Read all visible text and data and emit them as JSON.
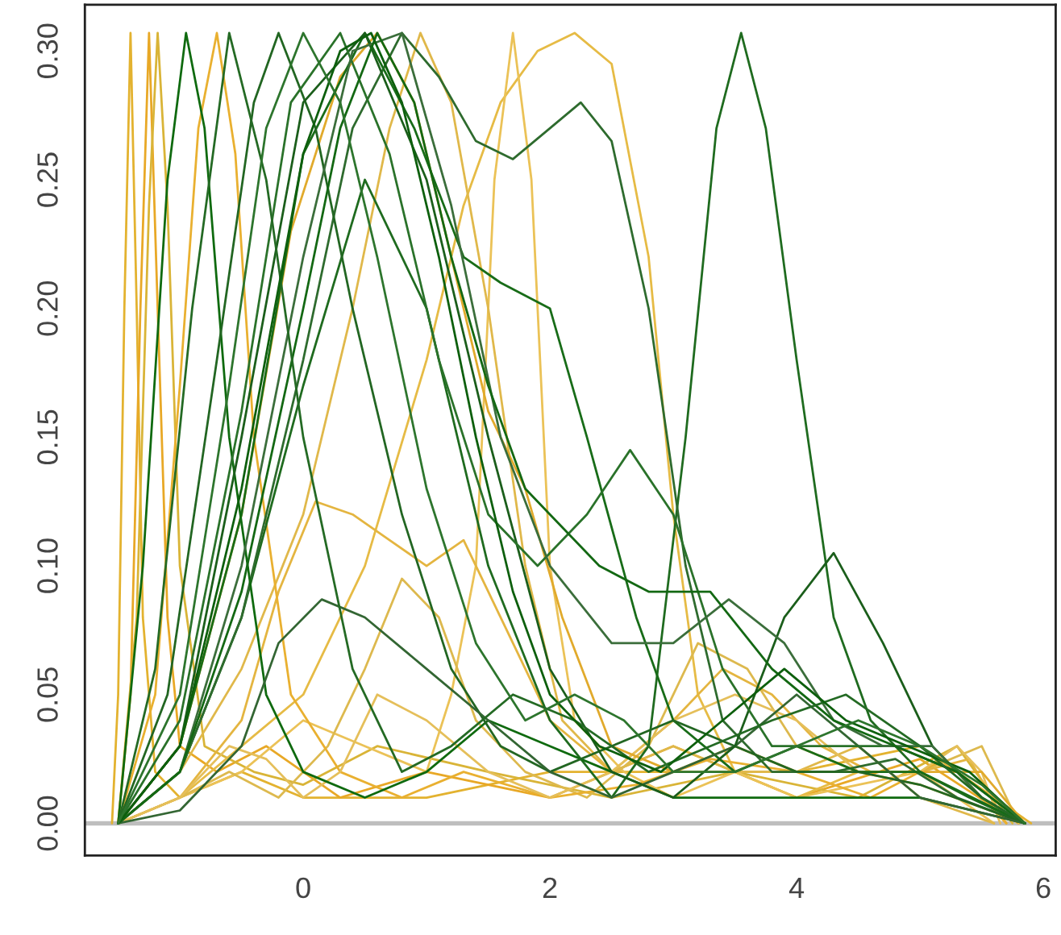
{
  "chart_data": {
    "type": "line",
    "xlim": [
      -1.77,
      6.1
    ],
    "ylim": [
      -0.0125,
      0.318
    ],
    "xticks": [
      0,
      2,
      4,
      6
    ],
    "yticks": [
      {
        "value": 0,
        "label": "0.00"
      },
      {
        "value": 0.05,
        "label": "0.05"
      },
      {
        "value": 0.1,
        "label": "0.10"
      },
      {
        "value": 0.15,
        "label": "0.15"
      },
      {
        "value": 0.2,
        "label": "0.20"
      },
      {
        "value": 0.25,
        "label": "0.25"
      },
      {
        "value": 0.3,
        "label": "0.30"
      }
    ],
    "ref_lines": [
      {
        "axis": "y",
        "value": 0,
        "color": "#bebebe"
      }
    ],
    "series": [
      {
        "color": "#e3b22f",
        "x": [
          -1.55,
          -1.5,
          -1.45,
          -1.4,
          -1.35,
          -1.3,
          -1.2,
          -1.0,
          -0.5,
          0,
          1,
          2,
          3,
          4,
          5,
          5.9
        ],
        "values": [
          0,
          0.05,
          0.2,
          0.307,
          0.2,
          0.08,
          0.02,
          0.01,
          0.02,
          0.01,
          0.01,
          0.02,
          0.02,
          0.02,
          0.03,
          0
        ]
      },
      {
        "color": "#e8a826",
        "x": [
          -1.5,
          -1.4,
          -1.32,
          -1.25,
          -1.18,
          -1.1,
          -1.0,
          -0.7,
          -0.3,
          0.3,
          1,
          2,
          3,
          4,
          5,
          5.8
        ],
        "values": [
          0,
          0.05,
          0.2,
          0.307,
          0.2,
          0.08,
          0.03,
          0.02,
          0.03,
          0.01,
          0.02,
          0.01,
          0.03,
          0.01,
          0.025,
          0
        ]
      },
      {
        "color": "#d9b437",
        "x": [
          -1.5,
          -1.35,
          -1.25,
          -1.18,
          -1.1,
          -1.0,
          -0.8,
          -0.4,
          0,
          0.6,
          1.5,
          2.5,
          3.5,
          4.5,
          5.3,
          5.75
        ],
        "values": [
          0,
          0.08,
          0.24,
          0.307,
          0.24,
          0.1,
          0.03,
          0.02,
          0.015,
          0.03,
          0.02,
          0.01,
          0.02,
          0.01,
          0.03,
          0
        ]
      },
      {
        "color": "#e6bb45",
        "x": [
          -1.5,
          -1.0,
          -0.5,
          0,
          0.5,
          1,
          1.3,
          1.6,
          1.9,
          2.2,
          2.5,
          2.8,
          3.0,
          3.2,
          3.5,
          4,
          4.5,
          5,
          5.85
        ],
        "values": [
          0,
          0.01,
          0.03,
          0.05,
          0.1,
          0.18,
          0.24,
          0.28,
          0.3,
          0.307,
          0.295,
          0.22,
          0.12,
          0.05,
          0.02,
          0.01,
          0.02,
          0.015,
          0
        ]
      },
      {
        "color": "#ebc257",
        "x": [
          -1.5,
          -1.0,
          -0.5,
          0,
          0.5,
          1.0,
          1.2,
          1.4,
          1.55,
          1.7,
          1.85,
          2.0,
          2.2,
          2.6,
          3.0,
          3.5,
          4,
          4.5,
          5,
          5.6
        ],
        "values": [
          0,
          0.01,
          0.02,
          0.04,
          0.03,
          0.02,
          0.05,
          0.1,
          0.25,
          0.307,
          0.25,
          0.1,
          0.04,
          0.02,
          0.01,
          0.02,
          0.01,
          0.015,
          0.02,
          0
        ]
      },
      {
        "color": "#e0b84a",
        "x": [
          -1.5,
          -1.0,
          -0.5,
          0,
          0.4,
          0.7,
          0.95,
          1.2,
          1.5,
          1.8,
          2.1,
          2.5,
          3,
          3.5,
          4,
          4.5,
          5,
          5.6
        ],
        "values": [
          0,
          0.02,
          0.06,
          0.12,
          0.2,
          0.27,
          0.307,
          0.28,
          0.2,
          0.1,
          0.04,
          0.02,
          0.03,
          0.02,
          0.02,
          0.03,
          0.01,
          0
        ]
      },
      {
        "color": "#e4b540",
        "x": [
          -1.5,
          -1.0,
          -0.5,
          -0.2,
          0.1,
          0.4,
          0.7,
          1.0,
          1.3,
          1.6,
          2.0,
          2.5,
          3.0,
          3.4,
          3.8,
          4.2,
          4.6,
          5.0,
          5.4,
          5.7
        ],
        "values": [
          0,
          0.01,
          0.04,
          0.09,
          0.125,
          0.12,
          0.11,
          0.1,
          0.11,
          0.08,
          0.04,
          0.02,
          0.04,
          0.06,
          0.05,
          0.03,
          0.02,
          0.02,
          0.025,
          0
        ]
      },
      {
        "color": "#ddb94e",
        "x": [
          -1.5,
          -1.0,
          -0.6,
          -0.2,
          0.2,
          0.5,
          0.8,
          1.1,
          1.4,
          1.8,
          2.3,
          2.8,
          3.2,
          3.6,
          4.0,
          4.5,
          5.0,
          5.5,
          5.8
        ],
        "values": [
          0,
          0.01,
          0.02,
          0.01,
          0.03,
          0.06,
          0.095,
          0.08,
          0.04,
          0.02,
          0.01,
          0.03,
          0.07,
          0.06,
          0.03,
          0.02,
          0.02,
          0.03,
          0
        ]
      },
      {
        "color": "#e9b030",
        "x": [
          -1.5,
          -1.2,
          -1.0,
          -0.85,
          -0.7,
          -0.55,
          -0.4,
          -0.1,
          0.3,
          0.8,
          1.3,
          2,
          2.7,
          3.3,
          4,
          4.6,
          5.2,
          5.7
        ],
        "values": [
          0,
          0.05,
          0.17,
          0.27,
          0.307,
          0.26,
          0.15,
          0.05,
          0.02,
          0.01,
          0.02,
          0.01,
          0.015,
          0.025,
          0.02,
          0.01,
          0.025,
          0
        ]
      },
      {
        "color": "#e5bf5a",
        "x": [
          -1.5,
          -1.0,
          -0.6,
          -0.3,
          0,
          0.3,
          0.6,
          1.0,
          1.5,
          2.0,
          2.5,
          3.0,
          3.5,
          4.0,
          4.5,
          5.0,
          5.3,
          5.5,
          5.65
        ],
        "values": [
          0,
          0.01,
          0.03,
          0.025,
          0.01,
          0.02,
          0.05,
          0.04,
          0.02,
          0.01,
          0.02,
          0.04,
          0.05,
          0.04,
          0.02,
          0.02,
          0.03,
          0.02,
          0
        ]
      },
      {
        "color": "#e1aa2c",
        "x": [
          -1.5,
          -1.0,
          -0.5,
          -0.1,
          0.3,
          0.6,
          0.9,
          1.2,
          1.5,
          1.8,
          2.1,
          2.5,
          3,
          3.5,
          4,
          4.5,
          5,
          5.5,
          5.85
        ],
        "values": [
          0,
          0.03,
          0.12,
          0.23,
          0.29,
          0.307,
          0.28,
          0.22,
          0.16,
          0.13,
          0.08,
          0.03,
          0.02,
          0.03,
          0.02,
          0.02,
          0.02,
          0.02,
          0
        ]
      },
      {
        "color": "#1f6b1f",
        "x": [
          -1.5,
          -1.0,
          -0.5,
          0,
          0.5,
          1.0,
          1.5,
          2.0,
          2.5,
          2.8,
          3.1,
          3.35,
          3.55,
          3.75,
          4.0,
          4.3,
          4.6,
          5.0,
          5.4,
          5.85
        ],
        "values": [
          0,
          0.02,
          0.08,
          0.17,
          0.25,
          0.2,
          0.1,
          0.04,
          0.01,
          0.03,
          0.15,
          0.27,
          0.307,
          0.27,
          0.18,
          0.08,
          0.04,
          0.02,
          0.01,
          0
        ]
      },
      {
        "color": "#2e6b2e",
        "x": [
          -1.5,
          -1.0,
          -0.5,
          0,
          0.4,
          0.8,
          1.1,
          1.4,
          1.7,
          2.0,
          2.25,
          2.5,
          2.8,
          3.1,
          3.4,
          3.8,
          4.3,
          4.8,
          5.3,
          5.85
        ],
        "values": [
          0,
          0.02,
          0.08,
          0.18,
          0.27,
          0.307,
          0.29,
          0.265,
          0.258,
          0.27,
          0.28,
          0.265,
          0.2,
          0.1,
          0.04,
          0.02,
          0.02,
          0.025,
          0.01,
          0
        ]
      },
      {
        "color": "#186c18",
        "x": [
          -1.5,
          -1.0,
          -0.5,
          0,
          0.5,
          0.9,
          1.3,
          1.6,
          2.0,
          2.3,
          2.7,
          3.0,
          3.5,
          4.0,
          4.5,
          5.0,
          5.85
        ],
        "values": [
          0,
          0.03,
          0.12,
          0.26,
          0.307,
          0.27,
          0.22,
          0.21,
          0.2,
          0.15,
          0.08,
          0.04,
          0.02,
          0.03,
          0.02,
          0.02,
          0
        ]
      },
      {
        "color": "#0f6a0f",
        "x": [
          -1.5,
          -1.3,
          -1.1,
          -0.95,
          -0.8,
          -0.6,
          -0.3,
          0,
          0.5,
          1,
          1.5,
          2,
          2.5,
          3,
          4,
          5,
          5.85
        ],
        "values": [
          0,
          0.1,
          0.25,
          0.307,
          0.27,
          0.15,
          0.05,
          0.02,
          0.01,
          0.02,
          0.04,
          0.03,
          0.02,
          0.01,
          0.01,
          0.01,
          0
        ]
      },
      {
        "color": "#226622",
        "x": [
          -1.5,
          -1.1,
          -0.7,
          -0.4,
          -0.2,
          0.1,
          0.4,
          0.8,
          1.2,
          1.6,
          2,
          2.5,
          3,
          3.5,
          4,
          4.5,
          5,
          5.85
        ],
        "values": [
          0,
          0.05,
          0.18,
          0.28,
          0.307,
          0.27,
          0.2,
          0.12,
          0.06,
          0.03,
          0.02,
          0.03,
          0.04,
          0.03,
          0.02,
          0.02,
          0.015,
          0
        ]
      },
      {
        "color": "#336633",
        "x": [
          -1.5,
          -1,
          -0.5,
          -0.2,
          0.15,
          0.5,
          1,
          1.5,
          2,
          2.5,
          3,
          3.5,
          4,
          4.5,
          5,
          5.85
        ],
        "values": [
          0,
          0.005,
          0.03,
          0.07,
          0.087,
          0.08,
          0.06,
          0.04,
          0.02,
          0.01,
          0.02,
          0.03,
          0.05,
          0.03,
          0.01,
          0
        ]
      },
      {
        "color": "#1b5e1b",
        "x": [
          -1.5,
          -1,
          -0.5,
          0,
          0.5,
          1,
          1.5,
          2,
          2.5,
          3,
          3.5,
          3.9,
          4.3,
          4.7,
          5.1,
          5.5,
          5.85
        ],
        "values": [
          0,
          0.03,
          0.15,
          0.28,
          0.307,
          0.25,
          0.15,
          0.06,
          0.02,
          0.01,
          0.03,
          0.08,
          0.105,
          0.07,
          0.03,
          0.01,
          0
        ]
      },
      {
        "color": "#2a722a",
        "x": [
          -1.5,
          -1,
          -0.5,
          -0.1,
          0.3,
          0.7,
          1.1,
          1.5,
          1.9,
          2.3,
          2.65,
          3.0,
          3.4,
          3.8,
          4.3,
          4.8,
          5.3,
          5.85
        ],
        "values": [
          0,
          0.04,
          0.16,
          0.28,
          0.307,
          0.26,
          0.18,
          0.12,
          0.1,
          0.12,
          0.145,
          0.12,
          0.06,
          0.03,
          0.03,
          0.03,
          0.02,
          0
        ]
      },
      {
        "color": "#3b6e3b",
        "x": [
          -1.5,
          -1,
          -0.5,
          0,
          0.4,
          0.8,
          1.2,
          1.6,
          2.0,
          2.5,
          3.0,
          3.45,
          3.9,
          4.3,
          4.7,
          5.1,
          5.5,
          5.85
        ],
        "values": [
          0,
          0.02,
          0.1,
          0.22,
          0.3,
          0.307,
          0.24,
          0.15,
          0.1,
          0.07,
          0.07,
          0.087,
          0.07,
          0.04,
          0.03,
          0.03,
          0.01,
          0
        ]
      },
      {
        "color": "#136813",
        "x": [
          -1.5,
          -1,
          -0.5,
          0,
          0.3,
          0.6,
          0.9,
          1.2,
          1.5,
          1.8,
          2.0,
          2.4,
          2.8,
          3.3,
          3.8,
          4.3,
          4.8,
          5.3,
          5.85
        ],
        "values": [
          0,
          0.02,
          0.09,
          0.2,
          0.27,
          0.307,
          0.28,
          0.22,
          0.17,
          0.13,
          0.12,
          0.1,
          0.09,
          0.09,
          0.06,
          0.04,
          0.03,
          0.02,
          0
        ]
      },
      {
        "color": "#246a24",
        "x": [
          -1.5,
          -1.2,
          -0.9,
          -0.6,
          -0.3,
          0,
          0.4,
          0.8,
          1.2,
          1.7,
          2.2,
          2.8,
          3.3,
          3.8,
          4.4,
          5.0,
          5.5,
          5.85
        ],
        "values": [
          0,
          0.06,
          0.2,
          0.307,
          0.25,
          0.15,
          0.06,
          0.02,
          0.03,
          0.05,
          0.04,
          0.02,
          0.03,
          0.04,
          0.05,
          0.03,
          0.01,
          0
        ]
      },
      {
        "color": "#0d5f0d",
        "x": [
          -1.5,
          -1.0,
          -0.5,
          0,
          0.3,
          0.55,
          0.8,
          1.1,
          1.4,
          1.7,
          2.0,
          2.4,
          2.9,
          3.4,
          3.9,
          4.4,
          4.9,
          5.4,
          5.85
        ],
        "values": [
          0,
          0.03,
          0.13,
          0.26,
          0.3,
          0.307,
          0.28,
          0.22,
          0.15,
          0.09,
          0.05,
          0.03,
          0.02,
          0.04,
          0.06,
          0.04,
          0.03,
          0.02,
          0
        ]
      },
      {
        "color": "#2d752d",
        "x": [
          -1.5,
          -1.0,
          -0.6,
          -0.3,
          0,
          0.3,
          0.6,
          1.0,
          1.4,
          1.8,
          2.2,
          2.6,
          3.0,
          3.5,
          4.0,
          4.5,
          5.0,
          5.5,
          5.85
        ],
        "values": [
          0,
          0.05,
          0.17,
          0.27,
          0.307,
          0.28,
          0.22,
          0.13,
          0.07,
          0.04,
          0.05,
          0.04,
          0.02,
          0.02,
          0.03,
          0.04,
          0.03,
          0.015,
          0
        ]
      }
    ]
  }
}
